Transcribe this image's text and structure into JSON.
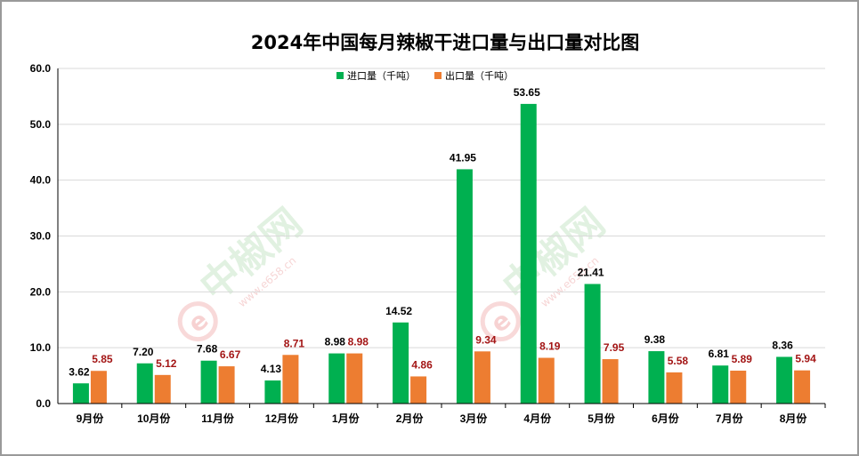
{
  "chart_data": {
    "type": "bar",
    "title": "2024年中国每月辣椒干进口量与出口量对比图",
    "categories": [
      "9月份",
      "10月份",
      "11月份",
      "12月份",
      "1月份",
      "2月份",
      "3月份",
      "4月份",
      "5月份",
      "6月份",
      "7月份",
      "8月份"
    ],
    "series": [
      {
        "name": "进口量（千吨）",
        "color": "#00b050",
        "label_color": "#000000",
        "values": [
          3.62,
          7.2,
          7.68,
          4.13,
          8.98,
          14.52,
          41.95,
          53.65,
          21.41,
          9.38,
          6.81,
          8.36
        ],
        "labels": [
          "3.62",
          "7.20",
          "7.68",
          "4.13",
          "8.98",
          "14.52",
          "41.95",
          "53.65",
          "21.41",
          "9.38",
          "6.81",
          "8.36"
        ]
      },
      {
        "name": "出口量（千吨）",
        "color": "#ed7d31",
        "label_color": "#a31515",
        "values": [
          5.85,
          5.12,
          6.67,
          8.71,
          8.98,
          4.86,
          9.34,
          8.19,
          7.95,
          5.58,
          5.89,
          5.94
        ],
        "labels": [
          "5.85",
          "5.12",
          "6.67",
          "8.71",
          "8.98",
          "4.86",
          "9.34",
          "8.19",
          "7.95",
          "5.58",
          "5.89",
          "5.94"
        ]
      }
    ],
    "ylim": [
      0,
      60
    ],
    "yticks": [
      "0.0",
      "10.0",
      "20.0",
      "30.0",
      "40.0",
      "50.0",
      "60.0"
    ],
    "ytick_values": [
      0,
      10,
      20,
      30,
      40,
      50,
      60
    ],
    "grid": true,
    "legend_position": "top-center",
    "watermark": {
      "text": "中椒网",
      "url": "www.e658.cn",
      "logo_letter": "e",
      "text_color": "#7ac27a",
      "logo_color": "#e05050"
    }
  }
}
